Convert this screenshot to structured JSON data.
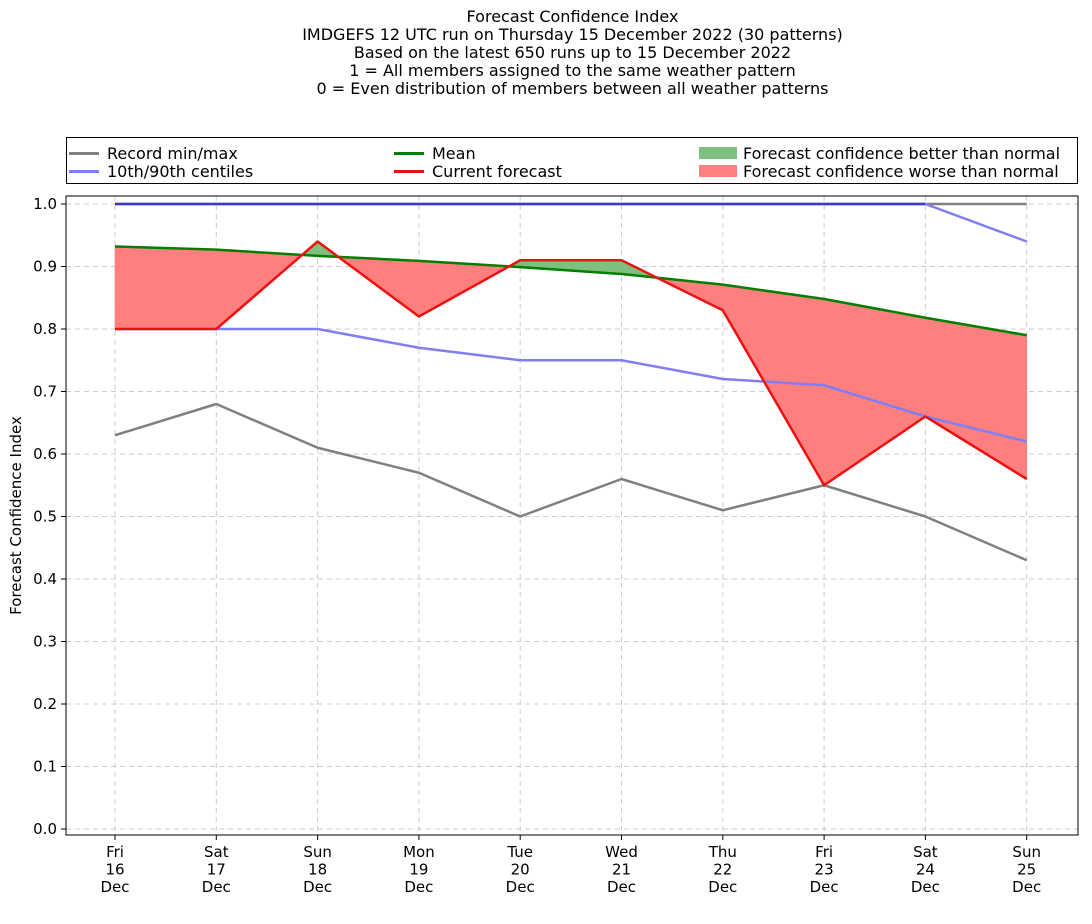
{
  "title_lines": [
    "Forecast Confidence Index",
    "IMDGEFS 12 UTC run on Thursday 15 December 2022 (30 patterns)",
    "Based on the latest 650 runs up to 15 December 2022",
    "1 = All members assigned to the same weather pattern",
    "0 = Even distribution of members between all weather patterns"
  ],
  "legend": {
    "record": "Record min/max",
    "centiles": "10th/90th centiles",
    "mean": "Mean",
    "current": "Current forecast",
    "better": "Forecast confidence better than normal",
    "worse": "Forecast confidence worse than normal"
  },
  "colors": {
    "record": "#808080",
    "centiles": "#7f7ff5",
    "centiles_max": "#3a3ac8",
    "mean": "#007f00",
    "current": "#ee1111",
    "better_fill": "#7fbf7f",
    "worse_fill": "#ff7f7f"
  },
  "chart_data": {
    "type": "line",
    "ylabel": "Forecast Confidence Index",
    "ylim": [
      0.0,
      1.0
    ],
    "yticks": [
      "0.0",
      "0.1",
      "0.2",
      "0.3",
      "0.4",
      "0.5",
      "0.6",
      "0.7",
      "0.8",
      "0.9",
      "1.0"
    ],
    "grid": true,
    "legend_position": "top",
    "categories": [
      [
        "Fri",
        "16",
        "Dec"
      ],
      [
        "Sat",
        "17",
        "Dec"
      ],
      [
        "Sun",
        "18",
        "Dec"
      ],
      [
        "Mon",
        "19",
        "Dec"
      ],
      [
        "Tue",
        "20",
        "Dec"
      ],
      [
        "Wed",
        "21",
        "Dec"
      ],
      [
        "Thu",
        "22",
        "Dec"
      ],
      [
        "Fri",
        "23",
        "Dec"
      ],
      [
        "Sat",
        "24",
        "Dec"
      ],
      [
        "Sun",
        "25",
        "Dec"
      ]
    ],
    "series": [
      {
        "name": "Record min/max",
        "key": "record_max",
        "values": [
          1.0,
          1.0,
          1.0,
          1.0,
          1.0,
          1.0,
          1.0,
          1.0,
          1.0,
          1.0
        ]
      },
      {
        "name": "Record min/max",
        "key": "record_min",
        "values": [
          0.63,
          0.68,
          0.61,
          0.57,
          0.5,
          0.56,
          0.51,
          0.55,
          0.5,
          0.43
        ]
      },
      {
        "name": "10th/90th centiles",
        "key": "p90",
        "values": [
          1.0,
          1.0,
          1.0,
          1.0,
          1.0,
          1.0,
          1.0,
          1.0,
          1.0,
          0.94
        ]
      },
      {
        "name": "10th/90th centiles",
        "key": "p10",
        "values": [
          0.8,
          0.8,
          0.8,
          0.77,
          0.75,
          0.75,
          0.72,
          0.71,
          0.66,
          0.62
        ]
      },
      {
        "name": "Mean",
        "key": "mean",
        "values": [
          0.932,
          0.927,
          0.917,
          0.909,
          0.899,
          0.888,
          0.871,
          0.848,
          0.818,
          0.79
        ]
      },
      {
        "name": "Current forecast",
        "key": "current",
        "values": [
          0.8,
          0.8,
          0.94,
          0.82,
          0.91,
          0.91,
          0.83,
          0.55,
          0.66,
          0.56
        ]
      }
    ]
  }
}
